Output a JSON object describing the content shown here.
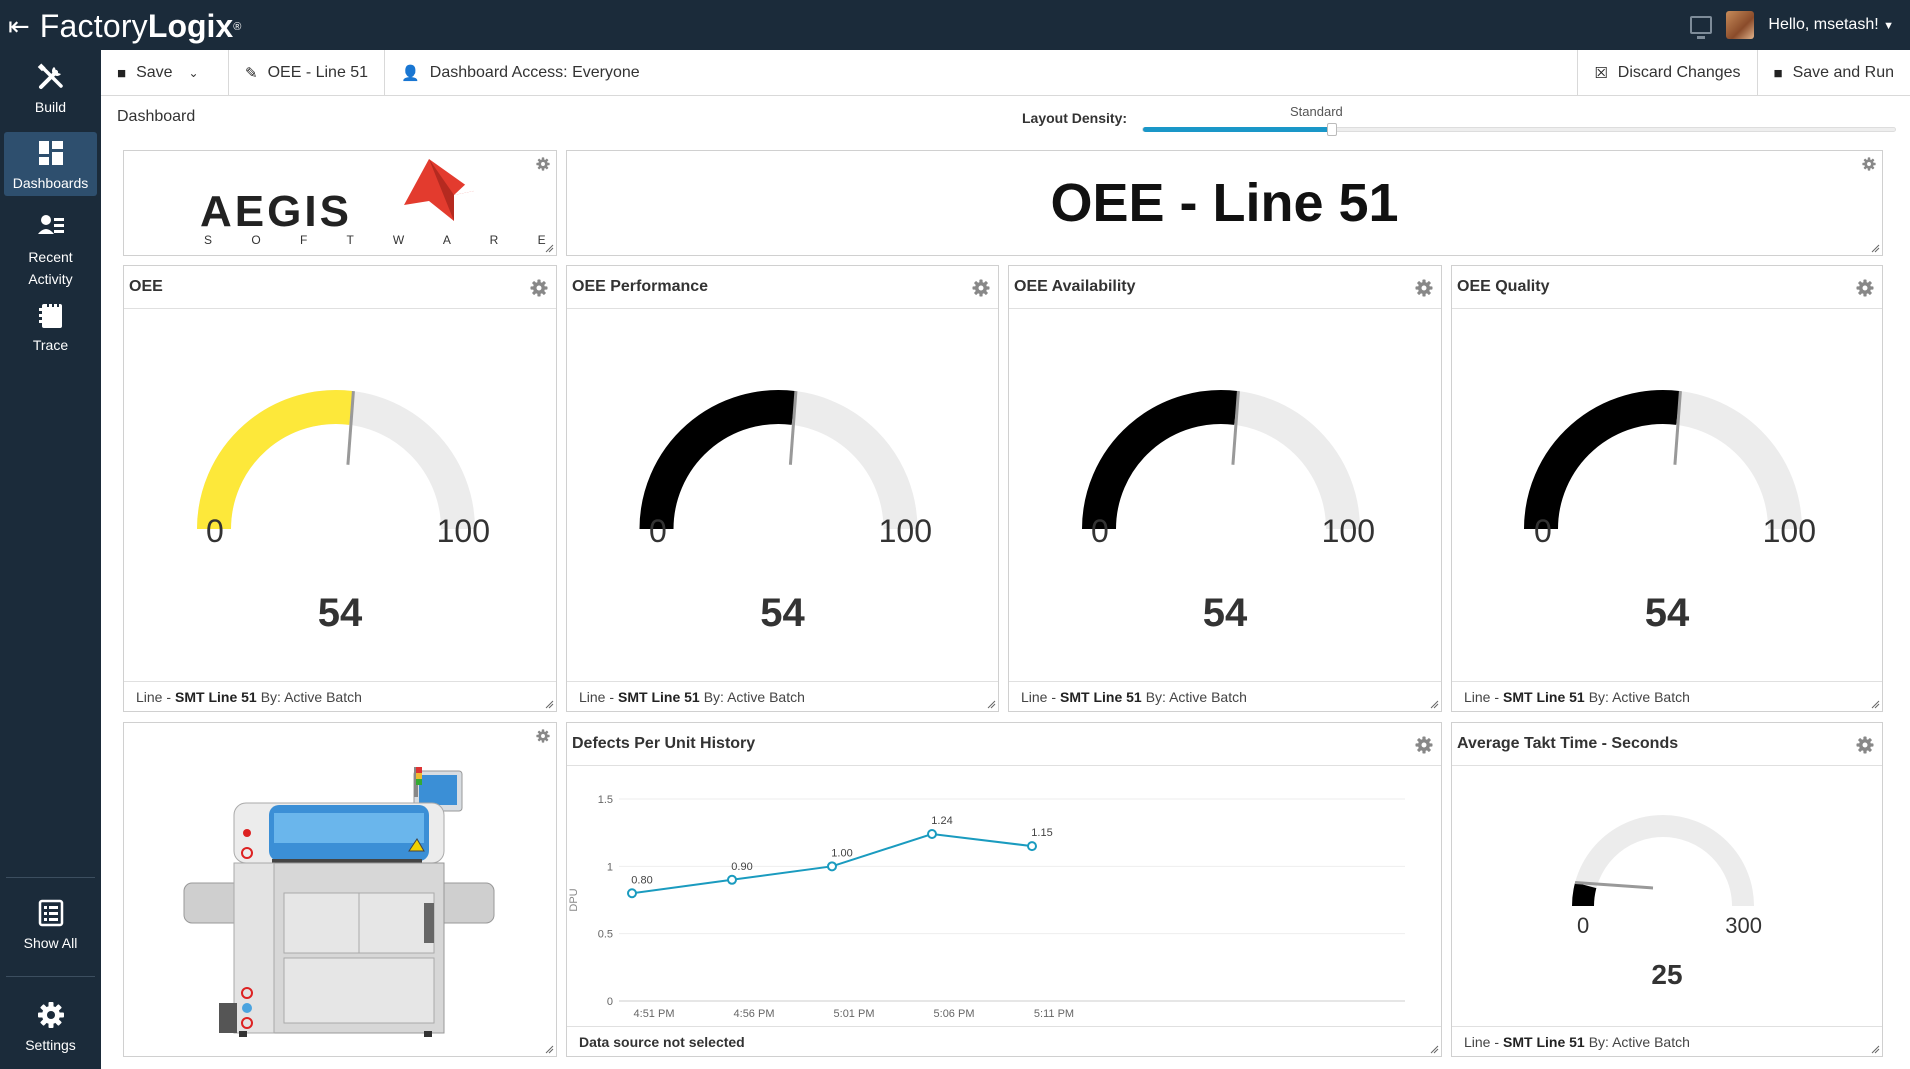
{
  "app": {
    "brand_thin": "Factory",
    "brand_bold": "Logix",
    "brand_mark": "®",
    "greeting": "Hello, msetash!"
  },
  "sidebar": {
    "items": [
      {
        "label": "Build",
        "icon": "tools-icon"
      },
      {
        "label": "Dashboards",
        "icon": "dashboard-icon"
      },
      {
        "label": "Recent Activity",
        "icon": "recent-activity-icon"
      },
      {
        "label": "Trace",
        "icon": "trace-icon"
      },
      {
        "label": "Show All",
        "icon": "list-icon"
      },
      {
        "label": "Settings",
        "icon": "gear-icon"
      }
    ]
  },
  "toolbar": {
    "save_label": "Save",
    "dashboard_name": "OEE - Line 51",
    "access_label": "Dashboard Access: Everyone",
    "discard_label": "Discard Changes",
    "save_run_label": "Save and Run"
  },
  "dashboard": {
    "title": "Dashboard",
    "density_label": "Layout Density:",
    "density_value": "Standard",
    "density_position": 0.25
  },
  "logo_panel": {
    "brand": "AEGIS",
    "tagline": "S O F T W A R E"
  },
  "title_panel": {
    "text": "OEE - Line 51"
  },
  "gauges": [
    {
      "title": "OEE",
      "min": "0",
      "max": "100",
      "value": 54,
      "value_text": "54",
      "color": "#fde83a",
      "foot_prefix": "Line -",
      "foot_bold": "SMT Line 51",
      "foot_suffix": "By: Active Batch"
    },
    {
      "title": "OEE Performance",
      "min": "0",
      "max": "100",
      "value": 54,
      "value_text": "54",
      "color": "#000000",
      "foot_prefix": "Line -",
      "foot_bold": "SMT Line 51",
      "foot_suffix": "By: Active Batch"
    },
    {
      "title": "OEE Availability",
      "min": "0",
      "max": "100",
      "value": 54,
      "value_text": "54",
      "color": "#000000",
      "foot_prefix": "Line -",
      "foot_bold": "SMT Line 51",
      "foot_suffix": "By: Active Batch"
    },
    {
      "title": "OEE Quality",
      "min": "0",
      "max": "100",
      "value": 54,
      "value_text": "54",
      "color": "#000000",
      "foot_prefix": "Line -",
      "foot_bold": "SMT Line 51",
      "foot_suffix": "By: Active Batch"
    }
  ],
  "takt": {
    "title": "Average Takt Time - Seconds",
    "min": "0",
    "max": "300",
    "value": 25,
    "range": [
      0,
      300
    ],
    "value_text": "25",
    "color": "#000000",
    "foot_prefix": "Line -",
    "foot_bold": "SMT Line 51",
    "foot_suffix": "By: Active Batch"
  },
  "defects": {
    "title": "Defects Per Unit History",
    "footer": "Data source not selected"
  },
  "chart_data": {
    "type": "line",
    "title": "Defects Per Unit History",
    "xlabel": "",
    "ylabel": "DPU",
    "categories": [
      "4:51 PM",
      "4:56 PM",
      "5:01 PM",
      "5:06 PM",
      "5:11 PM"
    ],
    "values": [
      0.8,
      0.9,
      1.0,
      1.24,
      1.15
    ],
    "value_labels": [
      "0.80",
      "0.90",
      "1.00",
      "1.24",
      "1.15"
    ],
    "y_ticks": [
      "0",
      "0.5",
      "1",
      "1.5"
    ],
    "ylim": [
      0,
      1.5
    ],
    "grid": true,
    "color": "#1a9bbf"
  }
}
